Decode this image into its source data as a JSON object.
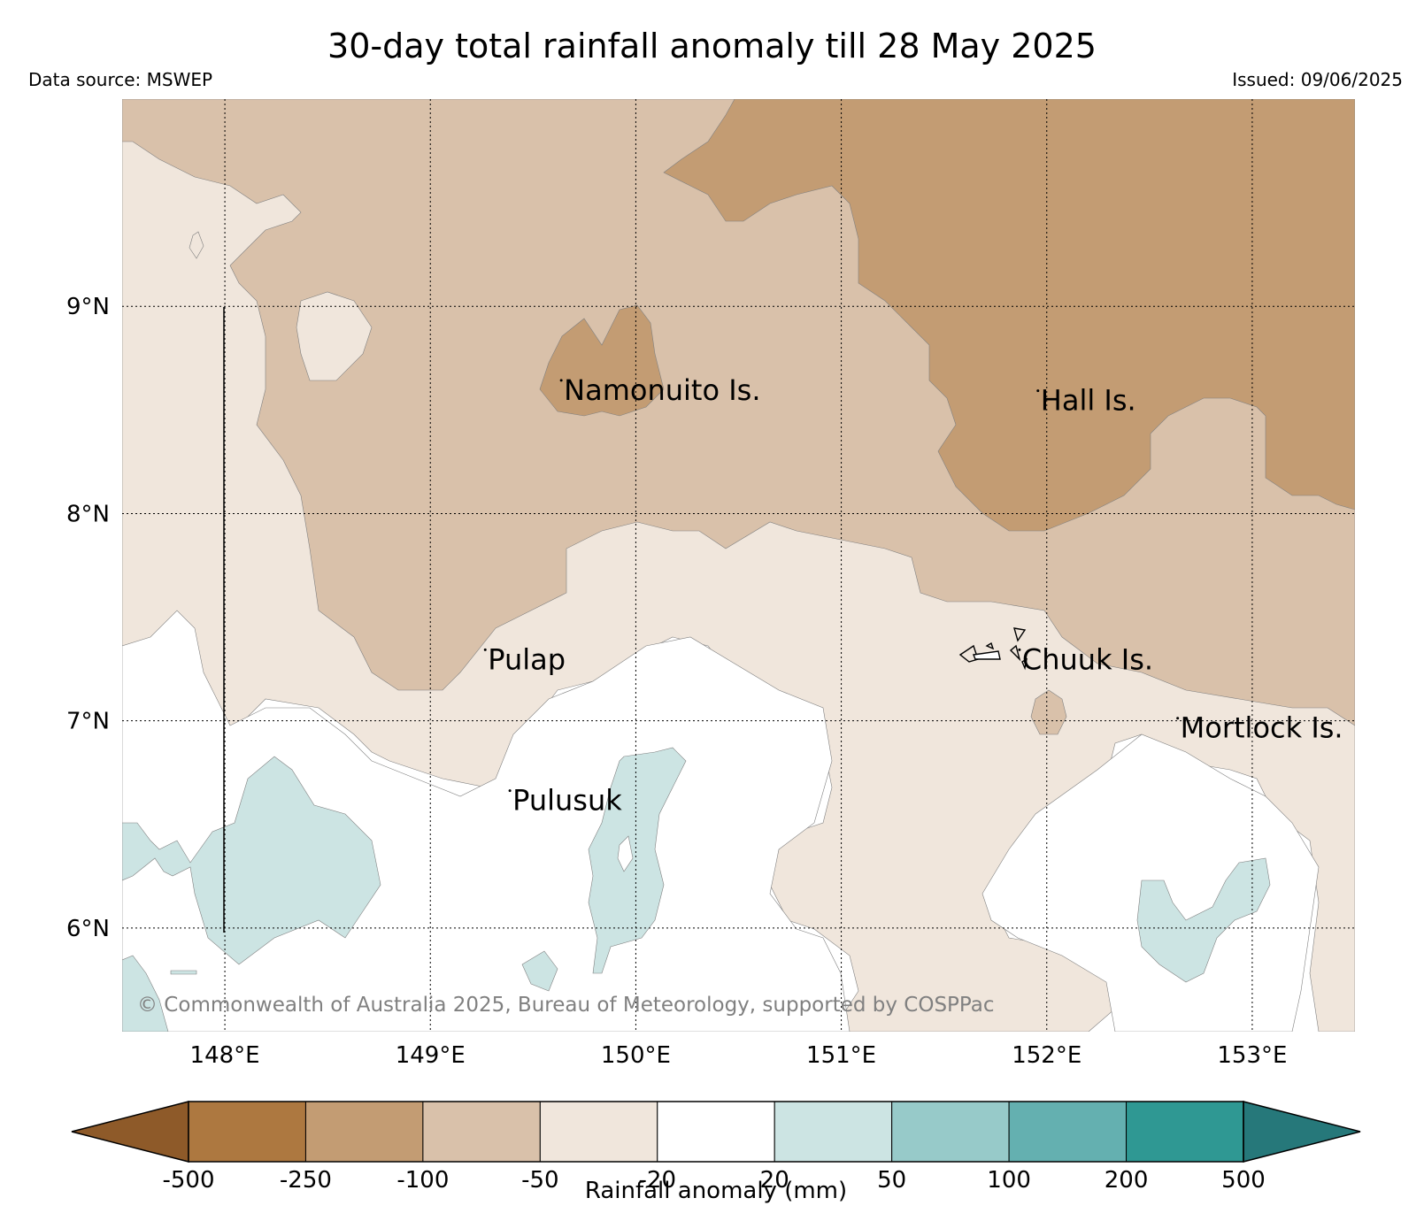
{
  "header": {
    "title": "30-day total rainfall anomaly till 28 May 2025",
    "source": "Data source: MSWEP",
    "issued": "Issued: 09/06/2025"
  },
  "map": {
    "lon_range": [
      147.5,
      153.5
    ],
    "lat_range": [
      5.5,
      10.0
    ],
    "lat_ticks": [
      {
        "value": 9,
        "label": "9°N"
      },
      {
        "value": 8,
        "label": "8°N"
      },
      {
        "value": 7,
        "label": "7°N"
      },
      {
        "value": 6,
        "label": "6°N"
      }
    ],
    "lon_ticks": [
      {
        "value": 148,
        "label": "148°E"
      },
      {
        "value": 149,
        "label": "149°E"
      },
      {
        "value": 150,
        "label": "150°E"
      },
      {
        "value": 151,
        "label": "151°E"
      },
      {
        "value": 152,
        "label": "152°E"
      },
      {
        "value": 153,
        "label": "153°E"
      }
    ],
    "places": [
      {
        "name": "Namonuito Is.",
        "lon": 149.65,
        "lat": 8.6
      },
      {
        "name": "Hall Is.",
        "lon": 151.97,
        "lat": 8.55
      },
      {
        "name": "Pulap",
        "lon": 149.28,
        "lat": 7.3
      },
      {
        "name": "Chuuk Is.",
        "lon": 151.88,
        "lat": 7.3
      },
      {
        "name": "Mortlock Is.",
        "lon": 152.65,
        "lat": 6.97
      },
      {
        "name": "Pulusuk",
        "lon": 149.4,
        "lat": 6.62
      }
    ],
    "copyright": "© Commonwealth of Australia 2025, Bureau of Meteorology, supported by COSPPac",
    "grid": true,
    "map_frame": false
  },
  "colorbar": {
    "title": "Rainfall anomaly (mm)",
    "tick_labels": [
      "-500",
      "-250",
      "-100",
      "-50",
      "-20",
      "20",
      "50",
      "100",
      "200",
      "500"
    ],
    "colors": [
      "#8e5a29",
      "#ad7840",
      "#c39c73",
      "#d9c1aa",
      "#f0e6dc",
      "#ffffff",
      "#cce4e3",
      "#97cac9",
      "#64b0b0",
      "#2f9893",
      "#26787a"
    ],
    "extend": "both"
  }
}
